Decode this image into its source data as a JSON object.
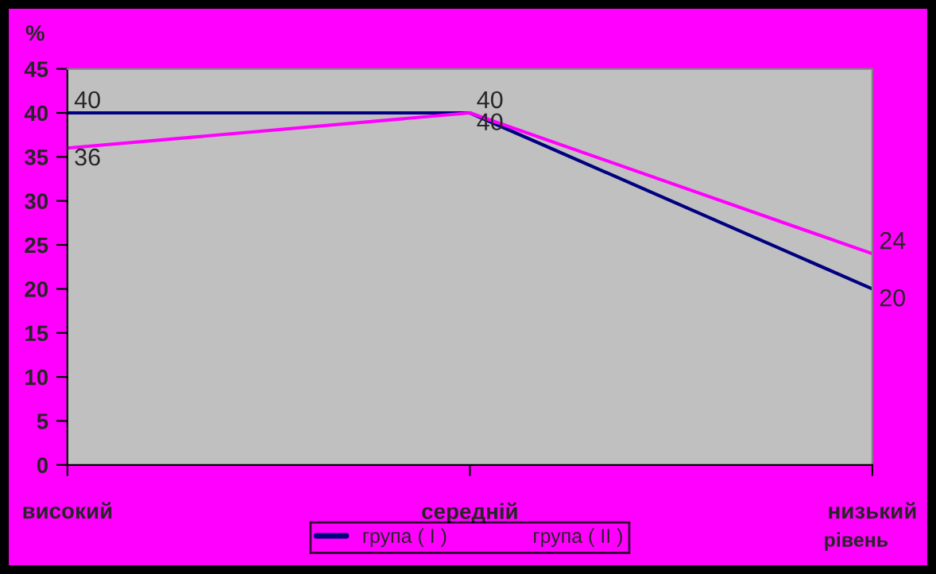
{
  "chart_data": {
    "type": "line",
    "ylabel": "%",
    "xlabel": "рівень",
    "categories": [
      "високий",
      "середній",
      "низький"
    ],
    "series": [
      {
        "name": "група ( I )",
        "color": "#000080",
        "values": [
          40,
          40,
          20
        ]
      },
      {
        "name": "група ( II )",
        "color": "#ff00ff",
        "values": [
          36,
          40,
          24
        ]
      }
    ],
    "ylim": [
      0,
      45
    ],
    "yticks": [
      0,
      5,
      10,
      15,
      20,
      25,
      30,
      35,
      40,
      45
    ],
    "data_labels": true,
    "legend": "bottom",
    "grid": false,
    "marker": "none",
    "line_style": "solid"
  }
}
